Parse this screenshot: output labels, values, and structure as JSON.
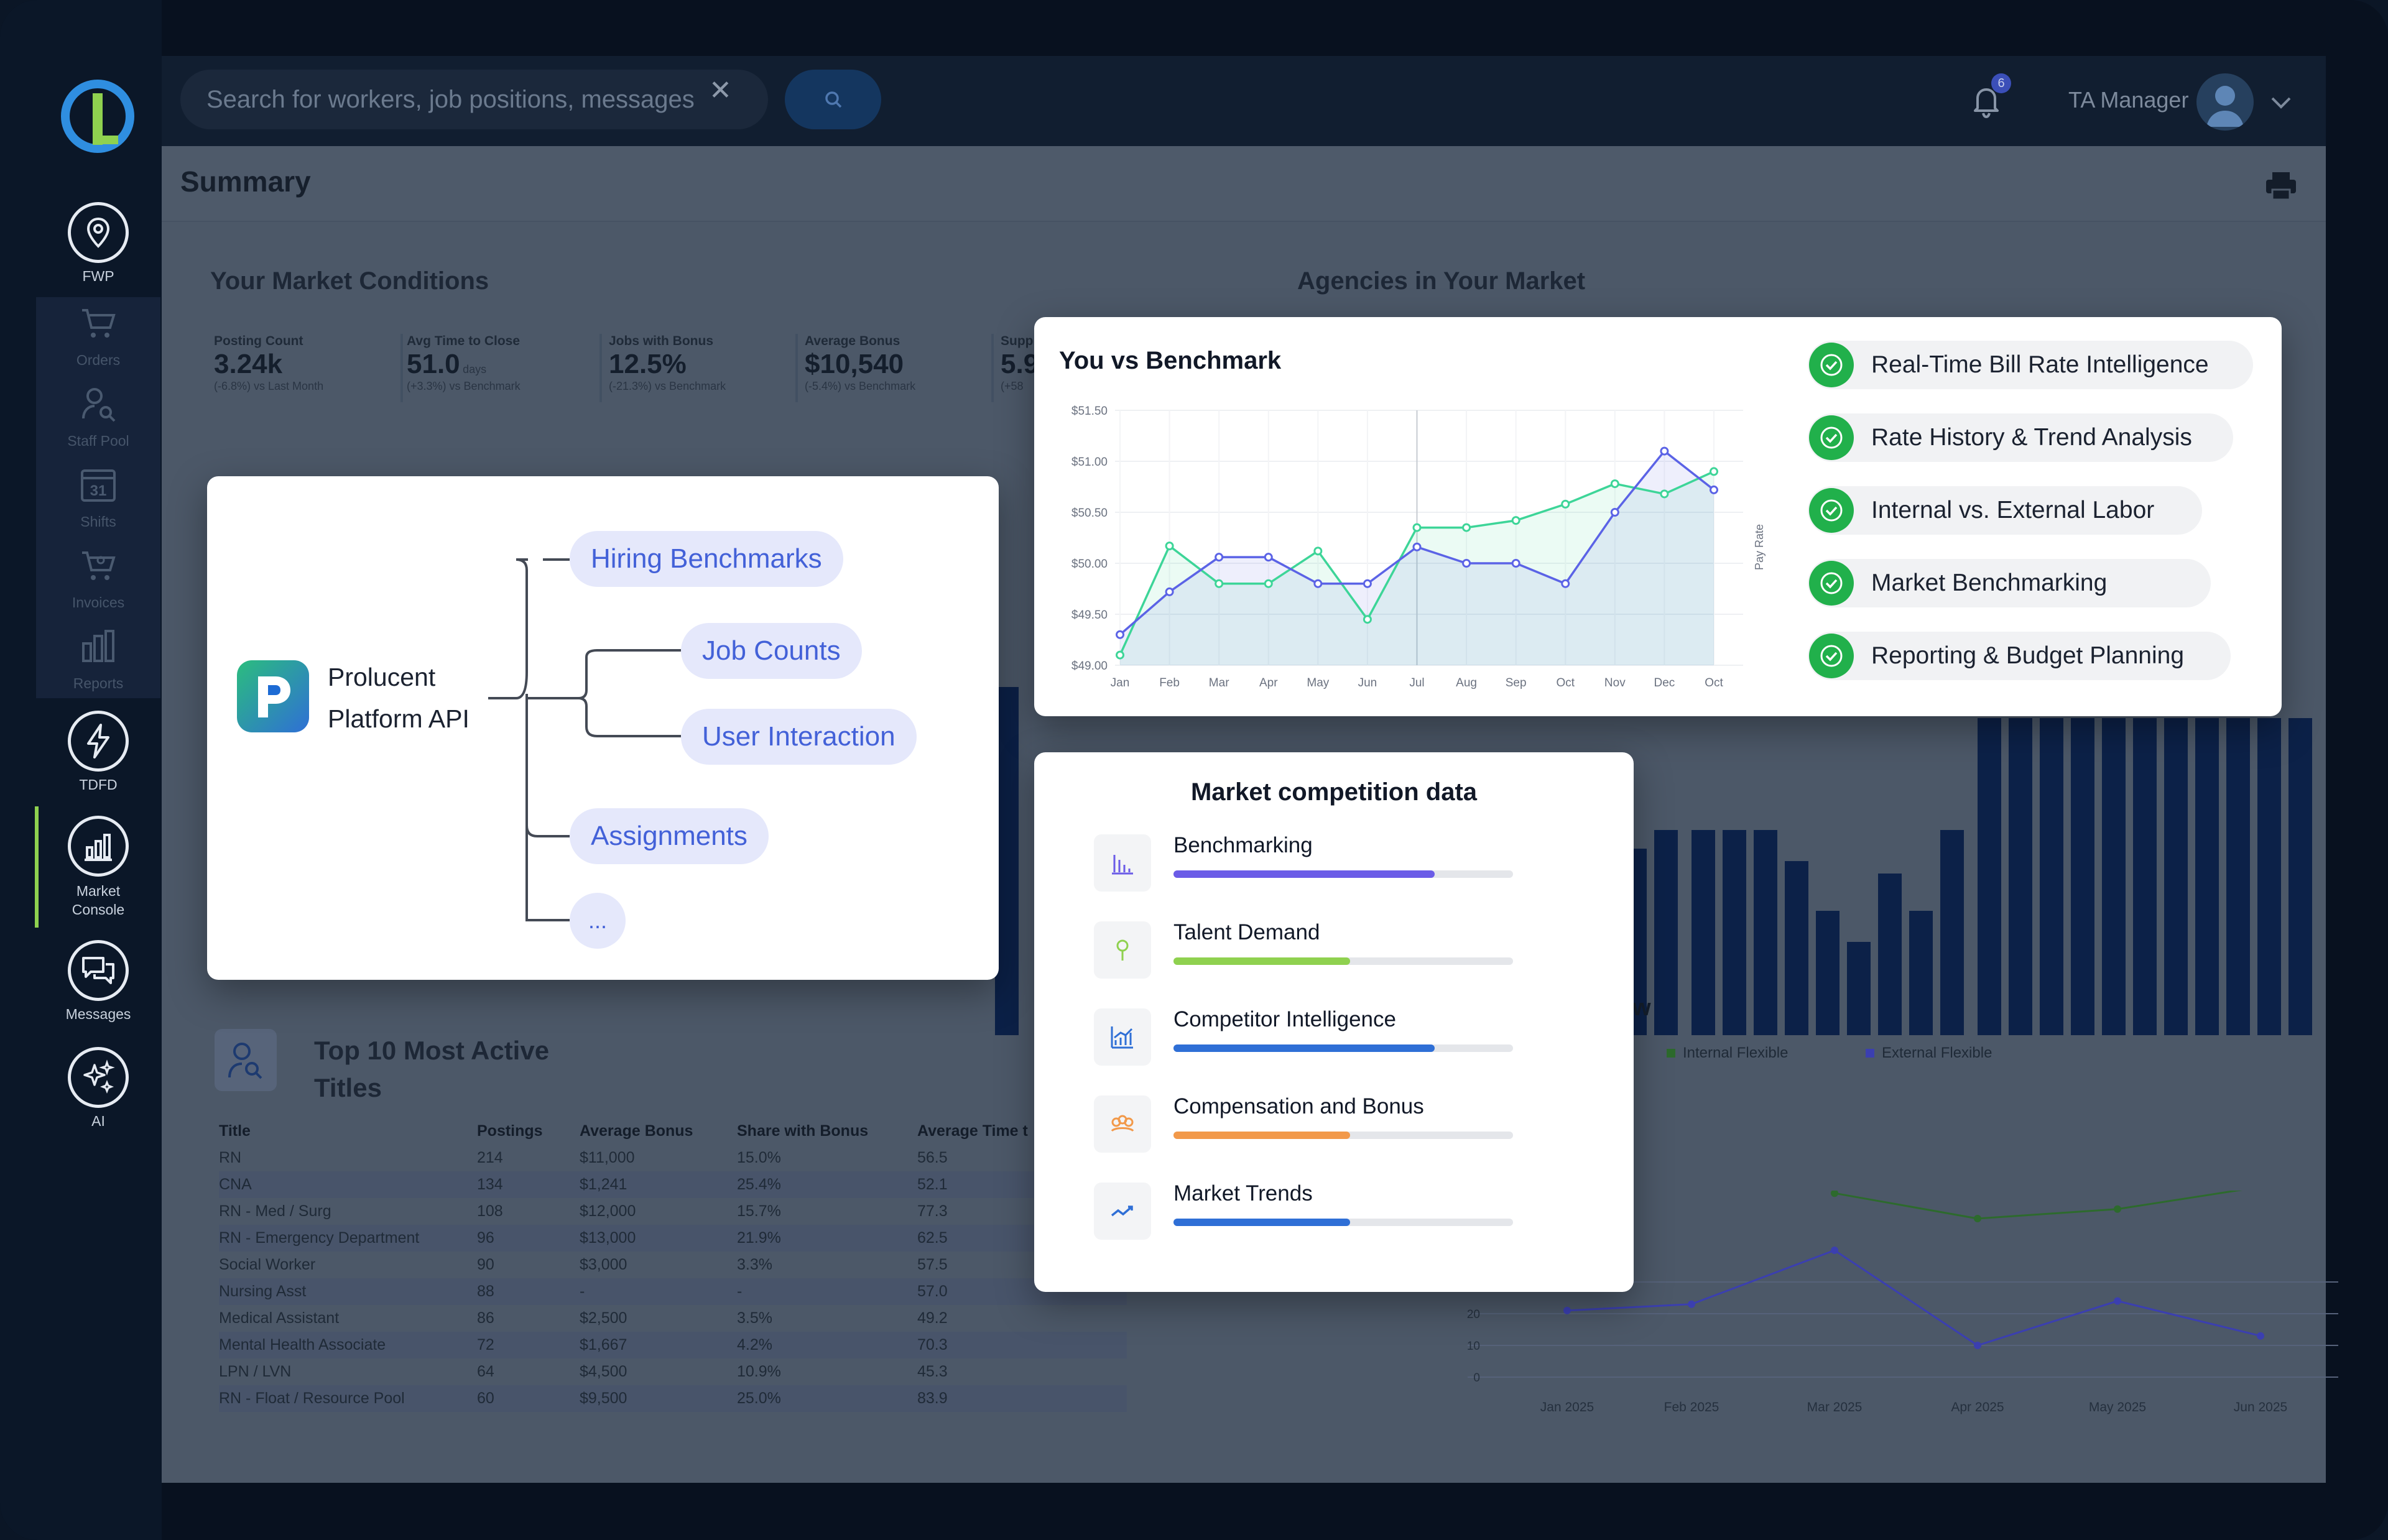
{
  "sidebar": {
    "items": [
      {
        "label": "FWP",
        "icon": "map-pin-icon"
      },
      {
        "label": "Orders",
        "icon": "cart-icon"
      },
      {
        "label": "Staff Pool",
        "icon": "person-search-icon"
      },
      {
        "label": "Shifts",
        "icon": "calendar-icon",
        "day": "31"
      },
      {
        "label": "Invoices",
        "icon": "invoice-cart-icon"
      },
      {
        "label": "Reports",
        "icon": "bar-chart-icon"
      },
      {
        "label": "TDFD",
        "icon": "lightning-icon"
      },
      {
        "label": "Market Console",
        "icon": "chart-icon"
      },
      {
        "label": "Messages",
        "icon": "messages-icon"
      },
      {
        "label": "AI",
        "icon": "sparkles-icon"
      }
    ]
  },
  "topbar": {
    "search_placeholder": "Search for workers, job positions, messages",
    "notification_count": "6",
    "user_name": "TA Manager"
  },
  "page": {
    "title": "Summary",
    "market_conditions_title": "Your Market Conditions",
    "agencies_title": "Agencies in Your Market",
    "top10_title": "Top 10 Most Active Titles"
  },
  "kpis": [
    {
      "label": "Posting Count",
      "value": "3.24k",
      "unit": "",
      "delta": "(-6.8%)",
      "compare": "vs Last Month"
    },
    {
      "label": "Avg Time to Close",
      "value": "51.0",
      "unit": "days",
      "delta": "(+3.3%)",
      "compare": "vs Benchmark"
    },
    {
      "label": "Jobs with Bonus",
      "value": "12.5%",
      "unit": "",
      "delta": "(-21.3%)",
      "compare": "vs Benchmark"
    },
    {
      "label": "Average Bonus",
      "value": "$10,540",
      "unit": "",
      "delta": "(-5.4%)",
      "compare": "vs Benchmark"
    },
    {
      "label": "Supply",
      "value": "5.9",
      "unit": "",
      "delta": "(+58",
      "compare": ""
    }
  ],
  "top10": {
    "columns": [
      "Title",
      "Postings",
      "Average Bonus",
      "Share with Bonus",
      "Average Time t"
    ],
    "rows": [
      [
        "RN",
        "214",
        "$11,000",
        "15.0%",
        "56.5"
      ],
      [
        "CNA",
        "134",
        "$1,241",
        "25.4%",
        "52.1"
      ],
      [
        "RN - Med / Surg",
        "108",
        "$12,000",
        "15.7%",
        "77.3"
      ],
      [
        "RN - Emergency Department",
        "96",
        "$13,000",
        "21.9%",
        "62.5"
      ],
      [
        "Social Worker",
        "90",
        "$3,000",
        "3.3%",
        "57.5"
      ],
      [
        "Nursing Asst",
        "88",
        "-",
        "-",
        "57.0"
      ],
      [
        "Medical Assistant",
        "86",
        "$2,500",
        "3.5%",
        "49.2"
      ],
      [
        "Mental Health Associate",
        "72",
        "$1,667",
        "4.2%",
        "70.3"
      ],
      [
        "LPN / LVN",
        "64",
        "$4,500",
        "10.9%",
        "45.3"
      ],
      [
        "RN - Float / Resource Pool",
        "60",
        "$9,500",
        "25.0%",
        "83.9"
      ]
    ]
  },
  "api_card": {
    "name_line1": "Prolucent",
    "name_line2": "Platform API",
    "branches": [
      "Hiring Benchmarks",
      "Job Counts",
      "User Interaction",
      "Assignments",
      "..."
    ]
  },
  "benchmark_card": {
    "features": [
      "Real-Time Bill Rate Intelligence",
      "Rate History & Trend Analysis",
      "Internal vs. External Labor",
      "Market Benchmarking",
      "Reporting & Budget Planning"
    ]
  },
  "chart_data": [
    {
      "type": "line",
      "title": "You vs Benchmark",
      "ylabel": "Pay Rate",
      "categories": [
        "Jan",
        "Feb",
        "Mar",
        "Apr",
        "May",
        "Jun",
        "Jul",
        "Aug",
        "Sep",
        "Oct",
        "Nov",
        "Dec",
        "Oct"
      ],
      "y_ticks": [
        "$49.00",
        "$49.50",
        "$50.00",
        "$50.50",
        "$51.00",
        "$51.50"
      ],
      "ylim": [
        49.0,
        51.5
      ],
      "series": [
        {
          "color": "#3dd598",
          "values": [
            49.1,
            50.17,
            49.8,
            49.8,
            50.12,
            49.45,
            50.35,
            50.35,
            50.42,
            50.58,
            50.78,
            50.68,
            50.9
          ]
        },
        {
          "color": "#5b63e6",
          "values": [
            49.3,
            49.72,
            50.06,
            50.06,
            49.8,
            49.8,
            50.16,
            50.0,
            50.0,
            49.8,
            50.5,
            51.1,
            50.72
          ]
        }
      ]
    },
    {
      "type": "line",
      "x": [
        "Jan 2025",
        "Feb 2025",
        "Mar 2025",
        "Apr 2025",
        "May 2025",
        "Jun 2025"
      ],
      "y_ticks": [
        "0",
        "10",
        "20",
        "30"
      ],
      "series": [
        {
          "name": "Internal Flexible",
          "color": "#2d6a2d",
          "values": [
            null,
            null,
            58,
            50,
            53,
            60
          ]
        },
        {
          "name": "External Flexible",
          "color": "#3b3fb0",
          "values": [
            21,
            23,
            40,
            10,
            24,
            13
          ]
        }
      ]
    }
  ],
  "market_competition": {
    "title": "Market competition data",
    "items": [
      {
        "label": "Benchmarking",
        "progress": 0.77,
        "color": "#6b5ce7",
        "icon": "bars-icon"
      },
      {
        "label": "Talent Demand",
        "progress": 0.52,
        "color": "#8fd14f",
        "icon": "pin-icon"
      },
      {
        "label": "Competitor Intelligence",
        "progress": 0.77,
        "color": "#2f6fd6",
        "icon": "growth-chart-icon"
      },
      {
        "label": "Compensation and Bonus",
        "progress": 0.52,
        "color": "#f2994a",
        "icon": "group-icon"
      },
      {
        "label": "Market Trends",
        "progress": 0.52,
        "color": "#2f6fd6",
        "icon": "trend-icon"
      }
    ]
  }
}
